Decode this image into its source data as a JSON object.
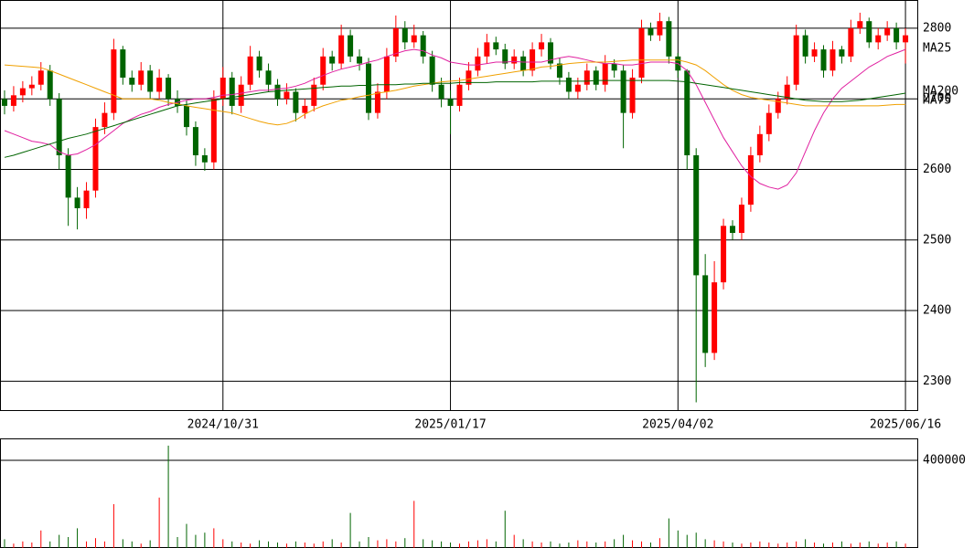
{
  "chart_data": {
    "type": "candlestick",
    "up_color": "#ff0000",
    "down_color": "#006400",
    "grid": true,
    "xlim": [
      -0.5,
      100.3
    ],
    "xticks": [
      {
        "value": 24,
        "label": "2024/10/31"
      },
      {
        "value": 49,
        "label": "2025/01/17"
      },
      {
        "value": 74,
        "label": "2025/04/02"
      },
      {
        "value": 99,
        "label": "2025/06/16"
      }
    ],
    "ylim": [
      2259,
      2840
    ],
    "yticks": [
      2300,
      2400,
      2500,
      2600,
      2700,
      2800
    ],
    "open": [
      2700,
      2690,
      2705,
      2715,
      2720,
      2740,
      2700,
      2620,
      2560,
      2545,
      2570,
      2660,
      2680,
      2770,
      2730,
      2720,
      2740,
      2710,
      2730,
      2700,
      2690,
      2660,
      2620,
      2610,
      2700,
      2730,
      2690,
      2720,
      2760,
      2740,
      2720,
      2700,
      2710,
      2680,
      2690,
      2720,
      2760,
      2750,
      2790,
      2760,
      2750,
      2680,
      2710,
      2760,
      2800,
      2780,
      2790,
      2760,
      2720,
      2700,
      2690,
      2720,
      2740,
      2760,
      2780,
      2770,
      2750,
      2760,
      2740,
      2770,
      2780,
      2750,
      2730,
      2710,
      2720,
      2740,
      2720,
      2750,
      2740,
      2680,
      2730,
      2800,
      2790,
      2810,
      2760,
      2740,
      2620,
      2450,
      2340,
      2440,
      2520,
      2510,
      2550,
      2620,
      2650,
      2680,
      2700,
      2720,
      2790,
      2760,
      2770,
      2740,
      2770,
      2760,
      2800,
      2810,
      2780,
      2790,
      2800,
      2780
    ],
    "high": [
      2712,
      2718,
      2725,
      2732,
      2752,
      2748,
      2708,
      2630,
      2575,
      2582,
      2672,
      2695,
      2785,
      2775,
      2740,
      2752,
      2748,
      2742,
      2735,
      2712,
      2698,
      2668,
      2630,
      2712,
      2745,
      2738,
      2732,
      2775,
      2768,
      2750,
      2728,
      2722,
      2715,
      2700,
      2730,
      2772,
      2768,
      2805,
      2798,
      2770,
      2758,
      2722,
      2772,
      2818,
      2810,
      2805,
      2796,
      2768,
      2730,
      2712,
      2730,
      2752,
      2772,
      2792,
      2788,
      2778,
      2770,
      2768,
      2780,
      2792,
      2786,
      2758,
      2738,
      2730,
      2750,
      2746,
      2762,
      2756,
      2748,
      2742,
      2812,
      2808,
      2822,
      2816,
      2765,
      2742,
      2630,
      2480,
      2470,
      2530,
      2528,
      2560,
      2632,
      2662,
      2692,
      2710,
      2732,
      2805,
      2798,
      2780,
      2776,
      2782,
      2775,
      2812,
      2822,
      2815,
      2800,
      2810,
      2808,
      2800
    ],
    "low": [
      2678,
      2682,
      2695,
      2705,
      2712,
      2690,
      2600,
      2520,
      2515,
      2530,
      2560,
      2650,
      2670,
      2720,
      2710,
      2712,
      2700,
      2700,
      2690,
      2680,
      2648,
      2605,
      2598,
      2600,
      2690,
      2678,
      2680,
      2712,
      2730,
      2710,
      2690,
      2692,
      2668,
      2672,
      2682,
      2712,
      2740,
      2742,
      2752,
      2740,
      2670,
      2672,
      2700,
      2752,
      2770,
      2772,
      2750,
      2710,
      2688,
      2650,
      2682,
      2712,
      2732,
      2750,
      2762,
      2742,
      2742,
      2732,
      2732,
      2760,
      2742,
      2720,
      2700,
      2700,
      2712,
      2712,
      2710,
      2730,
      2630,
      2672,
      2722,
      2782,
      2782,
      2750,
      2730,
      2600,
      2270,
      2320,
      2330,
      2430,
      2500,
      2500,
      2540,
      2610,
      2640,
      2672,
      2692,
      2712,
      2750,
      2752,
      2730,
      2732,
      2750,
      2752,
      2792,
      2772,
      2770,
      2782,
      2770,
      2750
    ],
    "close": [
      2690,
      2705,
      2715,
      2720,
      2740,
      2700,
      2620,
      2560,
      2545,
      2570,
      2660,
      2680,
      2770,
      2730,
      2720,
      2740,
      2710,
      2730,
      2700,
      2690,
      2660,
      2620,
      2610,
      2700,
      2730,
      2690,
      2720,
      2760,
      2740,
      2720,
      2700,
      2710,
      2680,
      2690,
      2720,
      2760,
      2750,
      2790,
      2760,
      2750,
      2680,
      2710,
      2760,
      2800,
      2780,
      2790,
      2760,
      2720,
      2700,
      2690,
      2720,
      2740,
      2760,
      2780,
      2770,
      2750,
      2760,
      2740,
      2770,
      2780,
      2750,
      2730,
      2710,
      2720,
      2740,
      2720,
      2750,
      2740,
      2680,
      2730,
      2800,
      2790,
      2810,
      2760,
      2740,
      2620,
      2450,
      2340,
      2440,
      2520,
      2510,
      2550,
      2620,
      2650,
      2680,
      2700,
      2720,
      2790,
      2760,
      2770,
      2740,
      2770,
      2760,
      2800,
      2810,
      2780,
      2790,
      2800,
      2780,
      2790
    ],
    "series": [
      {
        "name": "MA25",
        "color": "#e020a0",
        "values": [
          2655,
          2650,
          2645,
          2640,
          2638,
          2635,
          2625,
          2620,
          2622,
          2628,
          2635,
          2645,
          2655,
          2665,
          2672,
          2678,
          2682,
          2688,
          2692,
          2695,
          2698,
          2700,
          2700,
          2702,
          2705,
          2706,
          2708,
          2710,
          2712,
          2712,
          2714,
          2715,
          2718,
          2722,
          2728,
          2733,
          2738,
          2742,
          2745,
          2748,
          2752,
          2755,
          2760,
          2764,
          2768,
          2770,
          2768,
          2762,
          2758,
          2752,
          2750,
          2748,
          2748,
          2750,
          2752,
          2752,
          2753,
          2752,
          2752,
          2752,
          2755,
          2758,
          2760,
          2758,
          2755,
          2752,
          2750,
          2750,
          2748,
          2748,
          2750,
          2752,
          2752,
          2752,
          2750,
          2740,
          2720,
          2695,
          2670,
          2645,
          2625,
          2605,
          2590,
          2580,
          2575,
          2572,
          2578,
          2595,
          2625,
          2655,
          2680,
          2700,
          2715,
          2725,
          2735,
          2745,
          2752,
          2760,
          2765,
          2770
        ]
      },
      {
        "name": "MA75",
        "color": "#f0a000",
        "values": [
          2748,
          2747,
          2746,
          2745,
          2744,
          2740,
          2735,
          2730,
          2725,
          2720,
          2715,
          2710,
          2705,
          2700,
          2700,
          2700,
          2700,
          2698,
          2695,
          2693,
          2690,
          2688,
          2686,
          2684,
          2682,
          2680,
          2676,
          2672,
          2668,
          2665,
          2663,
          2665,
          2670,
          2678,
          2685,
          2690,
          2694,
          2698,
          2700,
          2703,
          2705,
          2708,
          2710,
          2712,
          2715,
          2718,
          2720,
          2722,
          2724,
          2725,
          2726,
          2728,
          2730,
          2732,
          2734,
          2736,
          2738,
          2740,
          2742,
          2745,
          2746,
          2748,
          2750,
          2751,
          2752,
          2752,
          2752,
          2753,
          2754,
          2755,
          2755,
          2755,
          2755,
          2755,
          2755,
          2752,
          2748,
          2740,
          2730,
          2720,
          2712,
          2706,
          2702,
          2700,
          2698,
          2696,
          2694,
          2692,
          2690,
          2690,
          2690,
          2690,
          2690,
          2690,
          2690,
          2690,
          2690,
          2691,
          2692,
          2692
        ]
      },
      {
        "name": "MA200",
        "color": "#006400",
        "values": [
          2617,
          2620,
          2624,
          2628,
          2632,
          2636,
          2640,
          2644,
          2647,
          2650,
          2654,
          2658,
          2662,
          2666,
          2670,
          2674,
          2678,
          2682,
          2686,
          2690,
          2692,
          2694,
          2696,
          2698,
          2700,
          2702,
          2704,
          2706,
          2708,
          2710,
          2711,
          2712,
          2713,
          2714,
          2715,
          2716,
          2717,
          2718,
          2718,
          2719,
          2719,
          2720,
          2720,
          2720,
          2721,
          2721,
          2722,
          2722,
          2722,
          2722,
          2723,
          2723,
          2723,
          2723,
          2724,
          2724,
          2724,
          2724,
          2724,
          2725,
          2725,
          2725,
          2725,
          2725,
          2725,
          2726,
          2726,
          2726,
          2726,
          2726,
          2726,
          2726,
          2726,
          2726,
          2725,
          2724,
          2722,
          2720,
          2718,
          2716,
          2714,
          2712,
          2710,
          2708,
          2706,
          2704,
          2702,
          2700,
          2698,
          2697,
          2696,
          2696,
          2696,
          2697,
          2698,
          2700,
          2702,
          2704,
          2706,
          2708
        ]
      }
    ],
    "volume": {
      "ylim": [
        0,
        500000
      ],
      "yticks": [
        400000
      ],
      "values": [
        40000,
        20000,
        30000,
        25000,
        80000,
        30000,
        60000,
        50000,
        90000,
        30000,
        45000,
        30000,
        200000,
        40000,
        30000,
        20000,
        35000,
        230000,
        467000,
        50000,
        110000,
        60000,
        70000,
        90000,
        40000,
        30000,
        25000,
        20000,
        35000,
        30000,
        25000,
        20000,
        30000,
        25000,
        20000,
        30000,
        40000,
        25000,
        160000,
        30000,
        50000,
        35000,
        40000,
        30000,
        45000,
        215000,
        40000,
        35000,
        30000,
        25000,
        20000,
        30000,
        35000,
        40000,
        30000,
        170000,
        60000,
        40000,
        30000,
        25000,
        30000,
        20000,
        25000,
        35000,
        30000,
        25000,
        30000,
        40000,
        60000,
        35000,
        30000,
        25000,
        45000,
        135000,
        80000,
        60000,
        70000,
        40000,
        35000,
        30000,
        25000,
        20000,
        25000,
        30000,
        25000,
        20000,
        25000,
        30000,
        40000,
        25000,
        20000,
        25000,
        30000,
        20000,
        25000,
        30000,
        20000,
        25000,
        30000,
        20000
      ]
    }
  }
}
